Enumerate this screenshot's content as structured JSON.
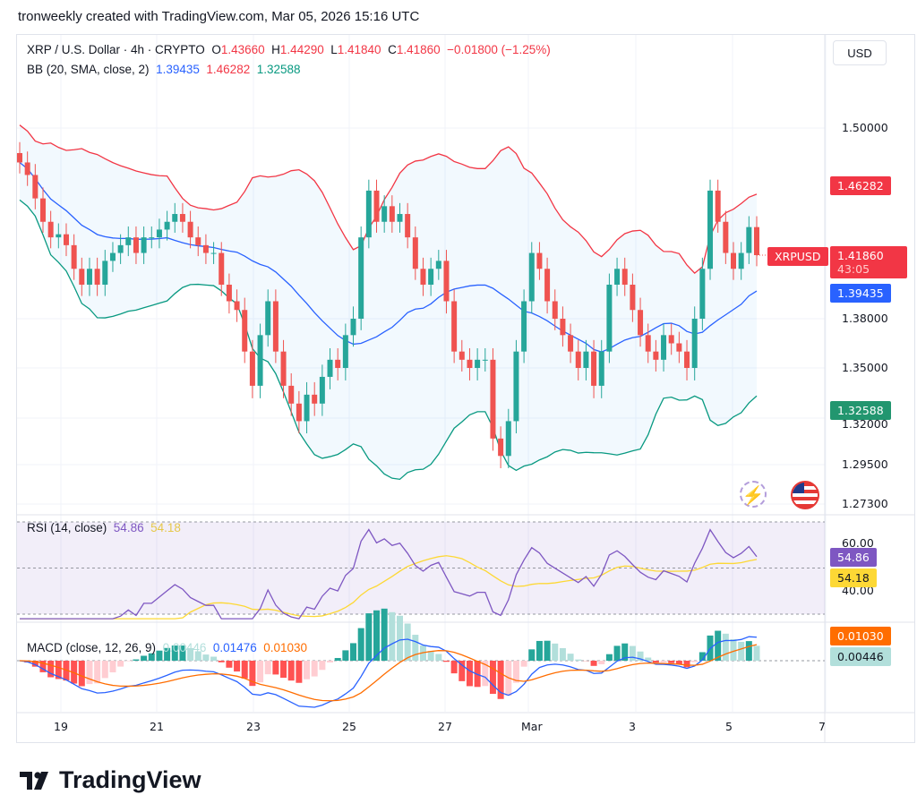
{
  "credit": "tronweekly created with TradingView.com, Mar 05, 2026 15:16 UTC",
  "legend": {
    "symbol": "XRP / U.S. Dollar · 4h · CRYPTO",
    "o_label": "O",
    "o": "1.43660",
    "h_label": "H",
    "h": "1.44290",
    "l_label": "L",
    "l": "1.41840",
    "c_label": "C",
    "c": "1.41860",
    "change": "−0.01800 (−1.25%)"
  },
  "bb": {
    "label": "BB (20, SMA, close, 2)",
    "basis": "1.39435",
    "upper": "1.46282",
    "lower": "1.32588"
  },
  "rsi": {
    "label": "RSI (14, close)",
    "value": "54.86",
    "ma": "54.18",
    "ticks": [
      "60.00",
      "40.00"
    ]
  },
  "macd": {
    "label": "MACD (close, 12, 26, 9)",
    "hist": "0.00446",
    "macd": "0.01476",
    "signal": "0.01030"
  },
  "currency_button": "USD",
  "price_ticks": [
    "1.50000",
    "1.38000",
    "1.35000",
    "1.32000",
    "1.29500",
    "1.27300"
  ],
  "price_tags": {
    "upper": "1.46282",
    "symbol": "XRPUSD",
    "last": "1.41860",
    "countdown": "43:05",
    "basis": "1.39435",
    "lower": "1.32588"
  },
  "date_ticks": [
    "19",
    "21",
    "23",
    "25",
    "27",
    "Mar",
    "3",
    "5",
    "7"
  ],
  "colors": {
    "up": "#26a69a",
    "down": "#ef5350",
    "bb_upper": "#f23645",
    "bb_basis": "#2962ff",
    "bb_lower": "#089981",
    "rsi": "#7e57c2",
    "rsi_ma": "#fdd835",
    "macd": "#2962ff",
    "signal": "#ff6d00"
  },
  "logo_text": "TradingView",
  "icons": [
    "lightning-replay-icon",
    "us-flag-icon"
  ],
  "chart_data": {
    "type": "candlestick",
    "interval": "4h",
    "closes": [
      1.478,
      1.47,
      1.455,
      1.44,
      1.43,
      1.432,
      1.425,
      1.41,
      1.4,
      1.41,
      1.4,
      1.415,
      1.42,
      1.425,
      1.43,
      1.42,
      1.43,
      1.43,
      1.435,
      1.44,
      1.445,
      1.44,
      1.43,
      1.425,
      1.42,
      1.42,
      1.4,
      1.39,
      1.385,
      1.36,
      1.34,
      1.37,
      1.39,
      1.36,
      1.34,
      1.33,
      1.32,
      1.335,
      1.33,
      1.345,
      1.355,
      1.35,
      1.37,
      1.38,
      1.43,
      1.46,
      1.44,
      1.45,
      1.44,
      1.445,
      1.43,
      1.41,
      1.4,
      1.41,
      1.415,
      1.39,
      1.36,
      1.355,
      1.35,
      1.355,
      1.355,
      1.31,
      1.3,
      1.32,
      1.36,
      1.39,
      1.42,
      1.41,
      1.39,
      1.38,
      1.37,
      1.36,
      1.35,
      1.36,
      1.34,
      1.36,
      1.4,
      1.41,
      1.4,
      1.385,
      1.37,
      1.36,
      1.355,
      1.37,
      1.365,
      1.36,
      1.35,
      1.38,
      1.41,
      1.46,
      1.44,
      1.42,
      1.41,
      1.42,
      1.4366,
      1.4186
    ],
    "price_scale": "log"
  }
}
